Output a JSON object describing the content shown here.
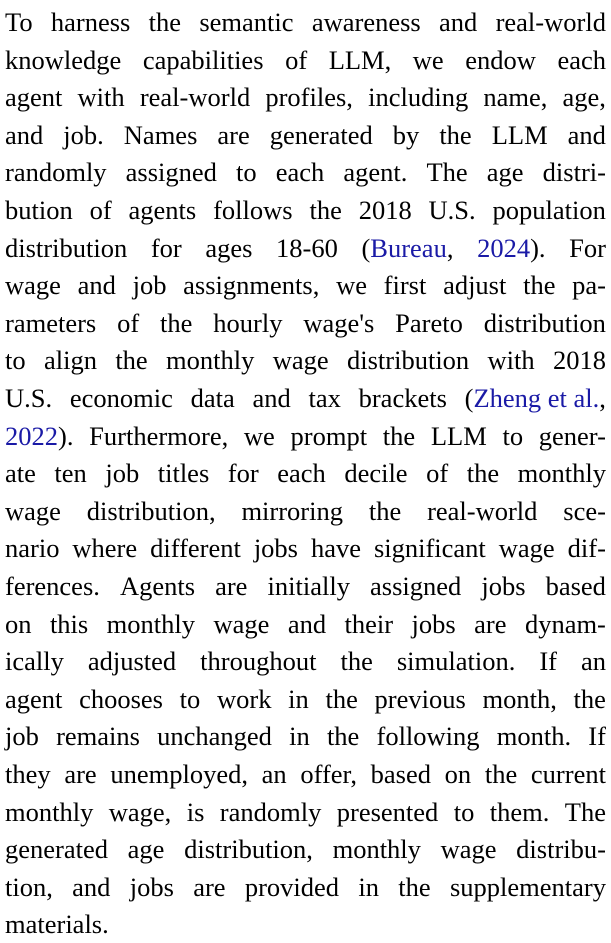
{
  "paragraph": {
    "lines": [
      "To harness the semantic awareness and real-world",
      "knowledge capabilities of LLM, we endow each",
      "agent with real-world profiles, including name, age,",
      "and job. Names are generated by the LLM and",
      "randomly assigned to each agent. The age distri-",
      "bution of agents follows the 2018 U.S. population",
      "distribution for ages 18-60 ({c0}, {c1}). For",
      "wage and job assignments, we first adjust the pa-",
      "rameters of the hourly wage's Pareto distribution",
      "to align the monthly wage distribution with 2018",
      "U.S. economic data and tax brackets ({c2},",
      "{c3}). Furthermore, we prompt the LLM to gener-",
      "ate ten job titles for each decile of the monthly",
      "wage distribution, mirroring the real-world sce-",
      "nario where different jobs have significant wage dif-",
      "ferences. Agents are initially assigned jobs based",
      "on this monthly wage and their jobs are dynam-",
      "ically adjusted throughout the simulation. If an",
      "agent chooses to work in the previous month, the",
      "job remains unchanged in the following month. If",
      "they are unemployed, an offer, based on the current",
      "monthly wage, is randomly presented to them. The",
      "generated age distribution, monthly wage distribu-",
      "tion, and jobs are provided in the supplementary",
      "materials."
    ],
    "citations": [
      "Bureau",
      "2024",
      "Zheng et al.",
      "2022"
    ]
  },
  "colors": {
    "text": "#000000",
    "citation": "#1a1aa6"
  }
}
